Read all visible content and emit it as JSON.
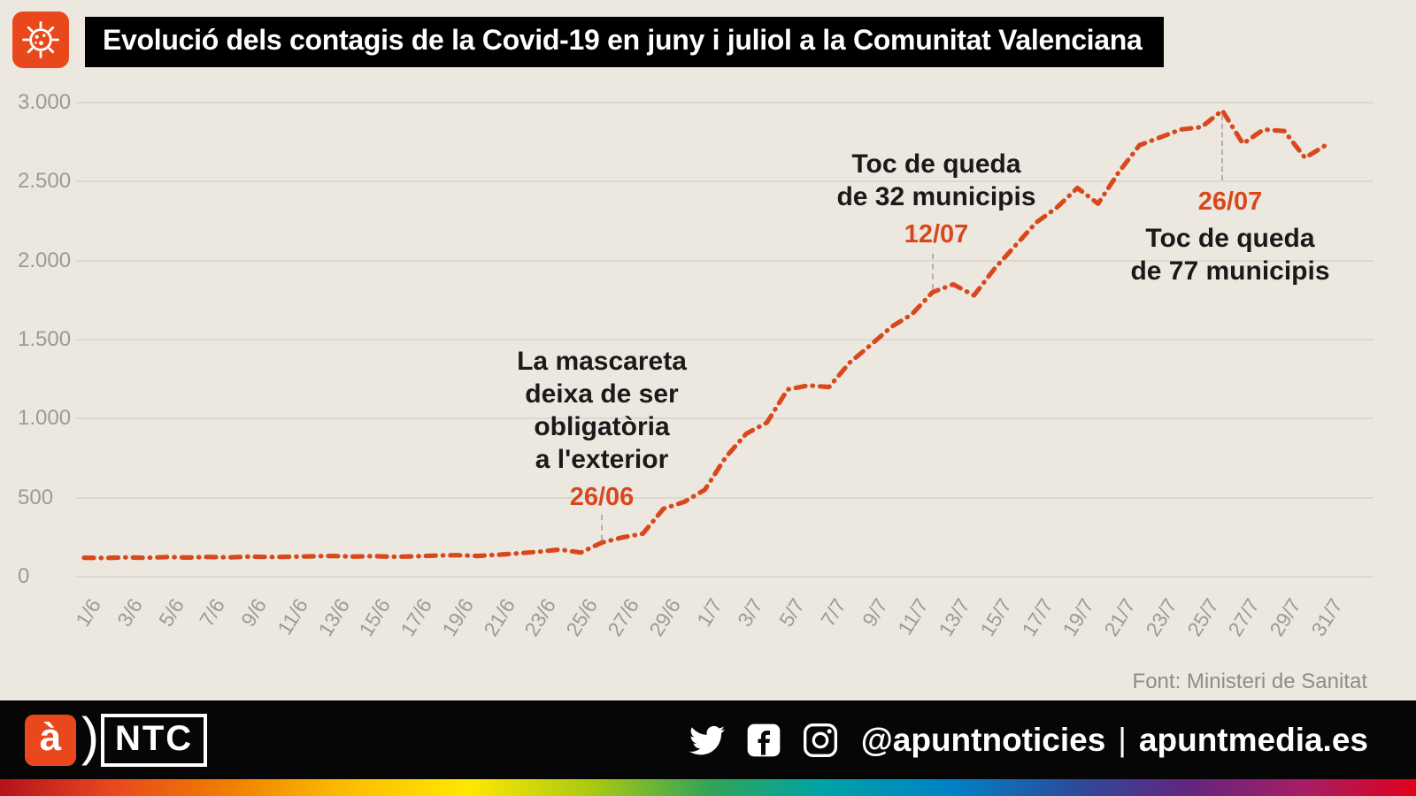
{
  "header": {
    "title": "Evolució dels contagis de la Covid-19 en juny i juliol a la Comunitat Valenciana"
  },
  "chart_data": {
    "type": "line",
    "title": "Evolució dels contagis de la Covid-19 en juny i juliol a la Comunitat Valenciana",
    "x": [
      "1/6",
      "2/6",
      "3/6",
      "4/6",
      "5/6",
      "6/6",
      "7/6",
      "8/6",
      "9/6",
      "10/6",
      "11/6",
      "12/6",
      "13/6",
      "14/6",
      "15/6",
      "16/6",
      "17/6",
      "18/6",
      "19/6",
      "20/6",
      "21/6",
      "22/6",
      "23/6",
      "24/6",
      "25/6",
      "26/6",
      "27/6",
      "28/6",
      "29/6",
      "30/6",
      "1/7",
      "2/7",
      "3/7",
      "4/7",
      "5/7",
      "6/7",
      "7/7",
      "8/7",
      "9/7",
      "10/7",
      "11/7",
      "12/7",
      "13/7",
      "14/7",
      "15/7",
      "16/7",
      "17/7",
      "18/7",
      "19/7",
      "20/7",
      "21/7",
      "22/7",
      "23/7",
      "24/7",
      "25/7",
      "26/7",
      "27/7",
      "28/7",
      "29/7",
      "30/7",
      "31/7"
    ],
    "values": [
      120,
      118,
      122,
      119,
      124,
      121,
      125,
      122,
      127,
      124,
      126,
      129,
      131,
      127,
      130,
      126,
      129,
      133,
      136,
      131,
      139,
      148,
      158,
      172,
      152,
      215,
      248,
      272,
      430,
      473,
      550,
      755,
      905,
      975,
      1185,
      1210,
      1200,
      1355,
      1465,
      1580,
      1660,
      1800,
      1850,
      1780,
      1950,
      2095,
      2240,
      2335,
      2460,
      2360,
      2560,
      2730,
      2780,
      2830,
      2845,
      2950,
      2740,
      2830,
      2820,
      2650,
      2730
    ],
    "tick_every": 2,
    "ylim": [
      0,
      3000
    ],
    "ytick_values": [
      0,
      500,
      1000,
      1500,
      2000,
      2500,
      3000
    ],
    "ytick_labels": [
      "0",
      "500",
      "1.000",
      "1.500",
      "2.000",
      "2.500",
      "3.000"
    ],
    "grid": "horizontal",
    "line_color": "#d9481c",
    "annotations": [
      {
        "id": "mask",
        "lines": [
          "La mascareta",
          "deixa de ser",
          "obligatòria",
          "a l'exterior"
        ],
        "date": "26/06",
        "x": "26/6",
        "y": 215
      },
      {
        "id": "curfew32",
        "lines": [
          "Toc de queda",
          "de 32 municipis"
        ],
        "date": "12/07",
        "x": "12/7",
        "y": 1800
      },
      {
        "id": "curfew77",
        "lines": [
          "Toc de queda",
          "de 77 municipis"
        ],
        "date": "26/07",
        "x": "26/7",
        "y": 2950
      }
    ],
    "source": "Font: Ministeri de Sanitat"
  },
  "footer": {
    "apunt_letter": "à",
    "ntc_paren": ")",
    "ntc_label": "NTC",
    "handle": "@apuntnoticies",
    "separator": "|",
    "site": "apuntmedia.es"
  },
  "colors": {
    "background": "#ece8e0",
    "accent": "#e8481c",
    "line": "#d9481c",
    "bar": "#000000"
  }
}
